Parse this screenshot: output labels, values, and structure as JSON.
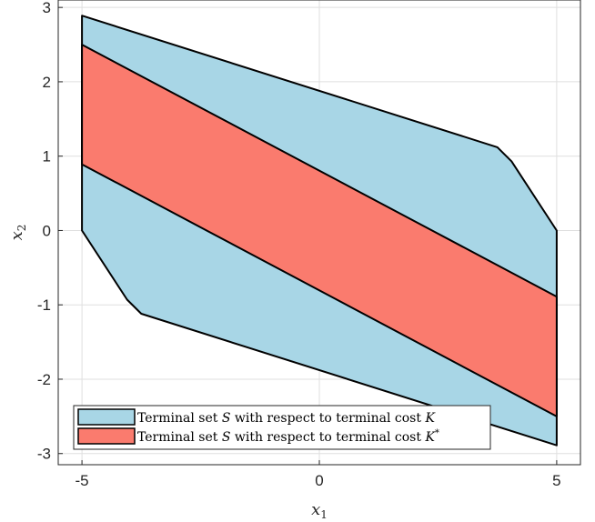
{
  "chart_data": {
    "type": "area",
    "title": "",
    "xlabel": {
      "base": "x",
      "sub": "1"
    },
    "ylabel": {
      "base": "x",
      "sub": "2"
    },
    "xlim": [
      -5.5,
      5.5
    ],
    "ylim": [
      -3.15,
      3.1
    ],
    "x_ticks": [
      -5,
      0,
      5
    ],
    "x_tick_labels": [
      "-5",
      "0",
      "5"
    ],
    "y_ticks": [
      -3,
      -2,
      -1,
      0,
      1,
      2,
      3
    ],
    "y_tick_labels": [
      "-3",
      "-2",
      "-1",
      "0",
      "1",
      "2",
      "3"
    ],
    "grid": true,
    "box": true,
    "legend_position": "bottom-left",
    "series": [
      {
        "name": [
          "Terminal set ",
          "S",
          " with respect to terminal cost ",
          "K",
          ""
        ],
        "color": "#a8d6e6",
        "polygon": [
          [
            -5,
            2.89
          ],
          [
            3.75,
            1.12
          ],
          [
            4.05,
            0.93
          ],
          [
            5,
            0.0
          ],
          [
            5,
            -2.89
          ],
          [
            -3.75,
            -1.12
          ],
          [
            -4.05,
            -0.93
          ],
          [
            -5,
            0.0
          ]
        ]
      },
      {
        "name": [
          "Terminal set ",
          "S",
          " with respect to terminal cost ",
          "K",
          "*"
        ],
        "color": "#fa7b6e",
        "polygon": [
          [
            -5,
            2.5
          ],
          [
            5,
            -0.89
          ],
          [
            5,
            -2.5
          ],
          [
            -5,
            0.89
          ]
        ]
      }
    ]
  }
}
